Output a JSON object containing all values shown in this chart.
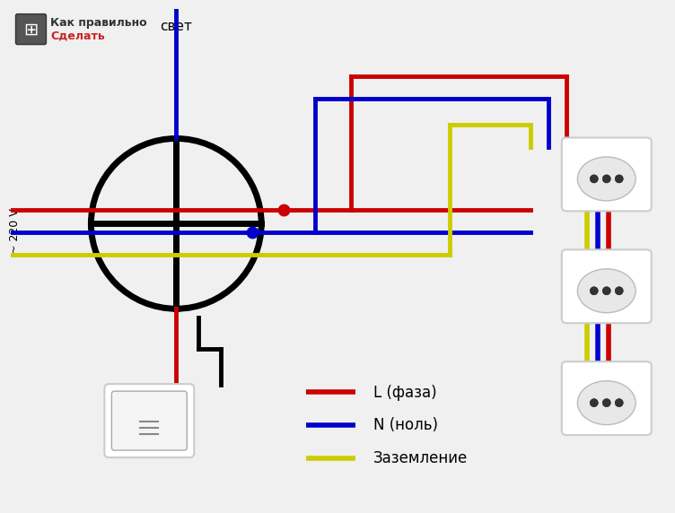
{
  "bg_color": "#f0f0f0",
  "title_text": "свет",
  "label_220": "~ 220 V",
  "wire_colors": {
    "phase": "#cc0000",
    "neutral": "#0000cc",
    "ground": "#cccc00"
  },
  "legend": [
    {
      "color": "#cc0000",
      "label": "L (фаза)"
    },
    {
      "color": "#0000cc",
      "label": "N (ноль)"
    },
    {
      "color": "#cccc00",
      "label": "Заземление"
    }
  ],
  "logo_text": [
    "Как правильно",
    "Сделать"
  ]
}
